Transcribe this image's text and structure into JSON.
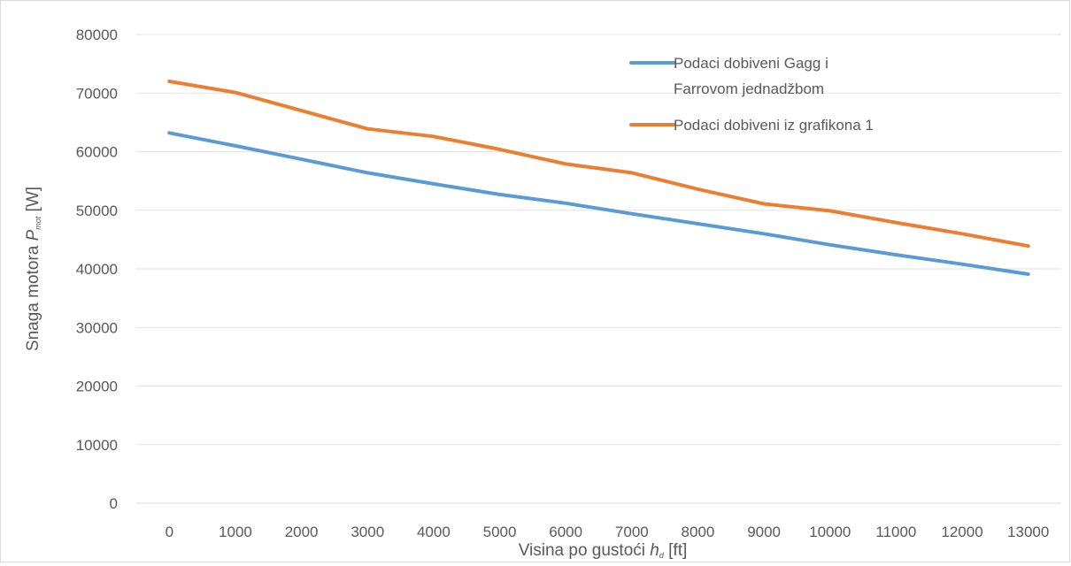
{
  "chart_data": {
    "type": "line",
    "xlabel": {
      "main": "Visina po gustoći",
      "var": "h",
      "sub": "d",
      "unit": "[ft]"
    },
    "ylabel": {
      "main": "Snaga motora",
      "var": "P",
      "sub": "mot",
      "unit": "[W]"
    },
    "categories": [
      "0",
      "1000",
      "2000",
      "3000",
      "4000",
      "5000",
      "6000",
      "7000",
      "8000",
      "9000",
      "10000",
      "11000",
      "12000",
      "13000"
    ],
    "yticks": [
      "0",
      "10000",
      "20000",
      "30000",
      "40000",
      "50000",
      "60000",
      "70000",
      "80000"
    ],
    "ylim": [
      0,
      80000
    ],
    "grid": true,
    "legend_position": "top-right",
    "series": [
      {
        "name_lines": [
          "Podaci dobiveni Gagg i",
          "Farrovom jednadžbom"
        ],
        "color": "#5B9BD5",
        "values": [
          63200,
          61000,
          58700,
          56400,
          54500,
          52700,
          51200,
          49400,
          47700,
          46000,
          44100,
          42400,
          40800,
          39100
        ]
      },
      {
        "name_lines": [
          "Podaci dobiveni iz grafikona 1"
        ],
        "color": "#ED7D31",
        "values": [
          72000,
          70100,
          67000,
          63900,
          62600,
          60400,
          57900,
          56400,
          53600,
          51100,
          49900,
          47900,
          46000,
          43900
        ]
      }
    ]
  }
}
